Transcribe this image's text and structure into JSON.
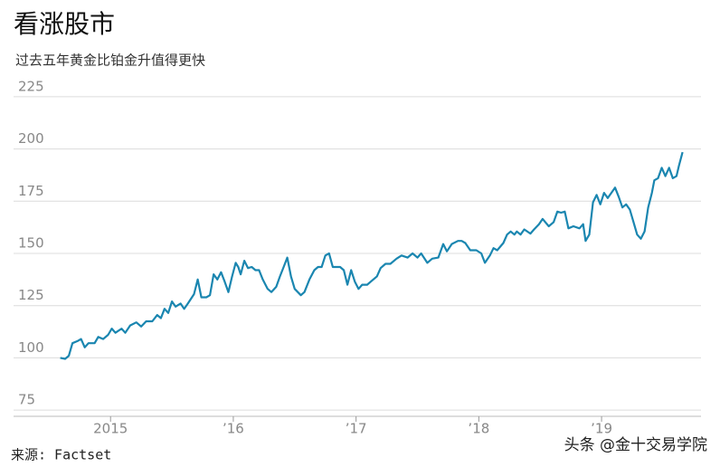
{
  "chart_data": {
    "type": "line",
    "title": "看涨股市",
    "subtitle": "过去五年黄金比铂金升值得更快",
    "x": [
      2014.59,
      2014.63,
      2014.66,
      2014.69,
      2014.73,
      2014.76,
      2014.79,
      2014.82,
      2014.87,
      2014.9,
      2014.94,
      2014.98,
      2015.01,
      2015.04,
      2015.09,
      2015.12,
      2015.16,
      2015.21,
      2015.25,
      2015.29,
      2015.34,
      2015.38,
      2015.41,
      2015.44,
      2015.47,
      2015.5,
      2015.53,
      2015.57,
      2015.6,
      2015.63,
      2015.68,
      2015.71,
      2015.74,
      2015.78,
      2015.81,
      2015.84,
      2015.87,
      2015.9,
      2015.93,
      2015.96,
      2015.99,
      2016.02,
      2016.04,
      2016.06,
      2016.09,
      2016.12,
      2016.15,
      2016.18,
      2016.21,
      2016.24,
      2016.28,
      2016.31,
      2016.35,
      2016.38,
      2016.41,
      2016.44,
      2016.47,
      2016.5,
      2016.55,
      2016.58,
      2016.62,
      2016.66,
      2016.69,
      2016.72,
      2016.75,
      2016.78,
      2016.81,
      2016.84,
      2016.87,
      2016.9,
      2016.93,
      2016.96,
      2016.99,
      2017.02,
      2017.05,
      2017.09,
      2017.12,
      2017.17,
      2017.2,
      2017.24,
      2017.28,
      2017.33,
      2017.37,
      2017.42,
      2017.46,
      2017.5,
      2017.53,
      2017.58,
      2017.62,
      2017.67,
      2017.71,
      2017.74,
      2017.78,
      2017.83,
      2017.86,
      2017.89,
      2017.93,
      2017.98,
      2018.02,
      2018.05,
      2018.09,
      2018.12,
      2018.15,
      2018.2,
      2018.23,
      2018.26,
      2018.29,
      2018.31,
      2018.34,
      2018.37,
      2018.42,
      2018.45,
      2018.49,
      2018.52,
      2018.57,
      2018.61,
      2018.64,
      2018.67,
      2018.7,
      2018.73,
      2018.77,
      2018.82,
      2018.85,
      2018.87,
      2018.9,
      2018.93,
      2018.96,
      2018.99,
      2019.02,
      2019.05,
      2019.08,
      2019.11,
      2019.14,
      2019.17,
      2019.2,
      2019.23,
      2019.26,
      2019.29,
      2019.32,
      2019.35,
      2019.38,
      2019.41,
      2019.43,
      2019.46,
      2019.49,
      2019.52,
      2019.55,
      2019.58,
      2019.61,
      2019.63,
      2019.66
    ],
    "series": [
      {
        "color": "#1a86b0",
        "values": [
          100,
          99.5,
          101,
          107,
          108,
          109,
          105,
          107,
          107,
          110,
          109,
          111,
          114,
          112,
          114,
          112,
          115.5,
          117,
          115,
          117.5,
          117.5,
          120.5,
          119,
          123.5,
          121.5,
          127,
          124.5,
          126,
          123.5,
          126,
          130.5,
          137.5,
          129,
          129,
          130,
          140,
          137.5,
          141,
          136.5,
          131.5,
          139,
          145.5,
          143.5,
          140,
          146.5,
          143,
          143.5,
          142,
          142,
          137.5,
          133,
          131.5,
          134,
          139,
          143.5,
          148,
          139,
          133,
          130,
          131.5,
          137.5,
          142,
          143.5,
          143.5,
          149,
          150,
          143.5,
          143.5,
          143.5,
          142,
          135,
          142,
          136.5,
          133,
          135,
          135,
          136.5,
          139,
          143,
          145,
          145,
          147.5,
          149,
          148,
          150,
          148,
          150,
          145.5,
          147.5,
          148,
          154.5,
          151,
          154.5,
          156,
          156,
          155,
          151.5,
          151.5,
          150,
          145.5,
          149,
          152.5,
          151.5,
          155,
          159,
          160.5,
          159,
          160.5,
          159,
          161.5,
          159.5,
          161.5,
          164,
          166.5,
          163,
          165,
          170,
          169.5,
          170,
          162,
          163,
          162,
          164,
          156,
          159,
          174.5,
          178,
          173.5,
          179,
          176.5,
          179,
          181.5,
          177,
          172,
          173.5,
          171,
          165,
          159,
          157,
          160.5,
          172,
          179,
          185,
          186,
          191,
          187,
          191,
          186,
          187,
          192,
          198.5
        ]
      }
    ],
    "xlim": [
      2014.21,
      2019.81
    ],
    "xticks": [
      2015,
      {
        "value": 2016,
        "label": "’16"
      },
      {
        "value": 2017,
        "label": "’17"
      },
      {
        "value": 2018,
        "label": "’18"
      },
      {
        "value": 2019,
        "label": "’19"
      }
    ],
    "ylim": [
      72,
      228
    ],
    "yticks": [
      75,
      100,
      125,
      150,
      175,
      200,
      225
    ],
    "grid": true
  },
  "source": "来源: Factset",
  "credit": "头条 @金十交易学院"
}
